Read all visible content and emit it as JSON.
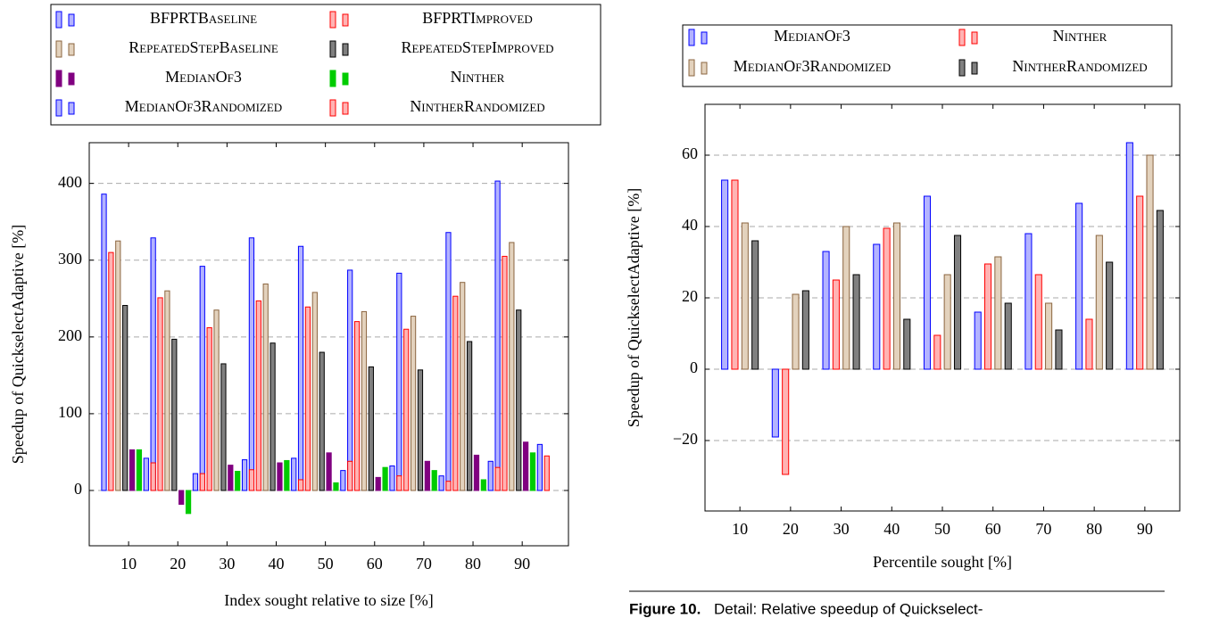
{
  "chart_data": [
    {
      "type": "bar",
      "x_label": "Index sought relative to size [%]",
      "y_label": "Speedup of QuickselectAdaptive [%]",
      "x": [
        10,
        20,
        30,
        40,
        50,
        60,
        70,
        80,
        90
      ],
      "xlim": [
        2,
        99.4
      ],
      "xticks": [
        10,
        20,
        30,
        40,
        50,
        60,
        70,
        80,
        90
      ],
      "ylim": [
        -72,
        453
      ],
      "yticks": [
        0,
        100,
        200,
        300,
        400
      ],
      "grid": true,
      "series": [
        {
          "name": "BFPRTBaseline",
          "color": "#0000ff",
          "fill": "#b3b3ff",
          "values": [
            386,
            329,
            292,
            329,
            318,
            287,
            283,
            336,
            403
          ]
        },
        {
          "name": "BFPRTImproved",
          "color": "#ff0000",
          "fill": "#ffb3b3",
          "values": [
            310,
            251,
            212,
            247,
            239,
            220,
            210,
            253,
            305
          ]
        },
        {
          "name": "RepeatedStepBaseline",
          "color": "#8b6540",
          "fill": "#e3d2bd",
          "values": [
            325,
            260,
            235,
            269,
            258,
            233,
            227,
            271,
            323
          ]
        },
        {
          "name": "RepeatedStepImproved",
          "color": "#000000",
          "fill": "#808080",
          "values": [
            241,
            197,
            165,
            192,
            180,
            161,
            157,
            194,
            235
          ]
        },
        {
          "name": "MedianOf3",
          "color": "#800080",
          "fill": "#800080",
          "values": [
            53,
            -18,
            33,
            36,
            49,
            17,
            38,
            46,
            63
          ]
        },
        {
          "name": "Ninther",
          "color": "#00cc00",
          "fill": "#00cc00",
          "values": [
            53,
            -30,
            25,
            39,
            10,
            30,
            26,
            14,
            49
          ]
        },
        {
          "name": "MedianOf3Randomized",
          "color": "#0000ff",
          "fill": "#b3b3ff",
          "values": [
            42,
            22,
            40,
            42,
            26,
            32,
            19,
            38,
            60
          ]
        },
        {
          "name": "NintherRandomized",
          "color": "#ff0000",
          "fill": "#ffb3b3",
          "values": [
            36,
            22,
            27,
            14,
            38,
            19,
            12,
            30,
            45
          ]
        }
      ]
    },
    {
      "type": "bar",
      "x_label": "Percentile sought [%]",
      "y_label": "Speedup of QuickselectAdaptive [%]",
      "x": [
        10,
        20,
        30,
        40,
        50,
        60,
        70,
        80,
        90
      ],
      "xlim": [
        3.1,
        96.9
      ],
      "xticks": [
        10,
        20,
        30,
        40,
        50,
        60,
        70,
        80,
        90
      ],
      "ylim": [
        -39.75,
        74.25
      ],
      "yticks": [
        {
          "value": -20,
          "label": "−20"
        },
        0,
        20,
        40,
        60
      ],
      "grid": true,
      "series": [
        {
          "name": "MedianOf3",
          "color": "#0000ff",
          "fill": "#b3b3ff",
          "values": [
            53,
            -19,
            33,
            35,
            48.5,
            16,
            38,
            46.5,
            63.5
          ]
        },
        {
          "name": "Ninther",
          "color": "#ff0000",
          "fill": "#ffb3b3",
          "values": [
            53,
            -29.5,
            25,
            39.5,
            9.5,
            29.5,
            26.5,
            14,
            48.5
          ]
        },
        {
          "name": "MedianOf3Randomized",
          "color": "#8b6540",
          "fill": "#e3d2bd",
          "values": [
            41,
            21,
            40,
            41,
            26.5,
            31.5,
            18.5,
            37.5,
            60
          ]
        },
        {
          "name": "NintherRandomized",
          "color": "#000000",
          "fill": "#808080",
          "values": [
            36,
            22,
            26.5,
            14,
            37.5,
            18.5,
            11,
            30,
            44.5
          ]
        }
      ]
    }
  ],
  "caption": {
    "label": "Figure 10.",
    "text": "Detail: Relative speedup of Quickselect-"
  }
}
